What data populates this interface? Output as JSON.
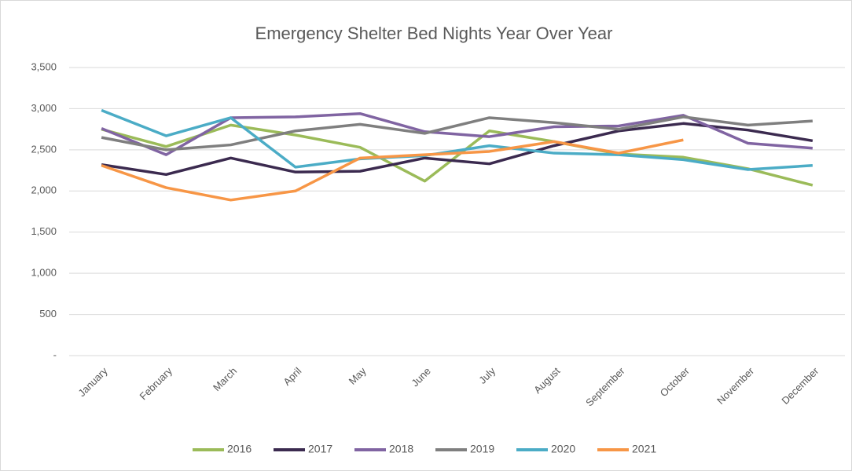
{
  "chart_data": {
    "type": "line",
    "title": "Emergency Shelter Bed Nights Year Over Year",
    "categories": [
      "January",
      "February",
      "March",
      "April",
      "May",
      "June",
      "July",
      "August",
      "September",
      "October",
      "November",
      "December"
    ],
    "series": [
      {
        "name": "2016",
        "color": "#9bbb59",
        "values": [
          2750,
          2540,
          2800,
          2680,
          2530,
          2120,
          2730,
          2600,
          2450,
          2410,
          2270,
          2070
        ]
      },
      {
        "name": "2017",
        "color": "#3b2a4f",
        "values": [
          2320,
          2200,
          2400,
          2230,
          2240,
          2400,
          2330,
          2550,
          2730,
          2820,
          2740,
          2610
        ]
      },
      {
        "name": "2018",
        "color": "#8064a2",
        "values": [
          2760,
          2440,
          2890,
          2900,
          2940,
          2720,
          2660,
          2780,
          2790,
          2920,
          2580,
          2520
        ]
      },
      {
        "name": "2019",
        "color": "#7f7f7f",
        "values": [
          2650,
          2500,
          2560,
          2730,
          2810,
          2700,
          2890,
          2830,
          2750,
          2900,
          2800,
          2850
        ]
      },
      {
        "name": "2020",
        "color": "#4bacc6",
        "values": [
          2980,
          2670,
          2890,
          2290,
          2390,
          2430,
          2550,
          2460,
          2440,
          2380,
          2260,
          2310
        ]
      },
      {
        "name": "2021",
        "color": "#f79646",
        "values": [
          2310,
          2040,
          1890,
          2000,
          2400,
          2440,
          2480,
          2600,
          2460,
          2620,
          null,
          null
        ]
      }
    ],
    "ylim": [
      0,
      3500
    ],
    "yticks": [
      {
        "value": 0,
        "label": "-"
      },
      500,
      {
        "value": 1000,
        "label": "1,000"
      },
      {
        "value": 1500,
        "label": "1,500"
      },
      {
        "value": 2000,
        "label": "2,000"
      },
      {
        "value": 2500,
        "label": "2,500"
      },
      {
        "value": 3000,
        "label": "3,000"
      },
      {
        "value": 3500,
        "label": "3,500"
      }
    ],
    "grid": true,
    "legend": "bottom"
  }
}
